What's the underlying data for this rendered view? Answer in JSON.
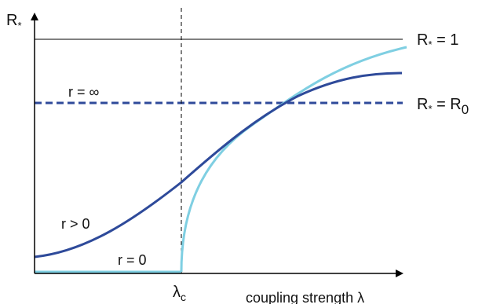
{
  "axes": {
    "y_label": "R",
    "y_label_sub": "*",
    "x_label": "coupling strength λ",
    "critical_label": "λ",
    "critical_label_sub": "c"
  },
  "reference_lines": {
    "upper": {
      "lhs": "R",
      "lhs_sub": "*",
      "rhs": " = 1"
    },
    "dashed": {
      "lhs": "R",
      "lhs_sub": "*",
      "rhs": " = R",
      "rhs_sub": "0"
    }
  },
  "curve_labels": {
    "r_inf": "r = ∞",
    "r_pos": "r > 0",
    "r_zero": "r = 0"
  },
  "colors": {
    "axis": "#000000",
    "dark_blue": "#2e4a9a",
    "light_blue": "#7fcfe2"
  }
}
